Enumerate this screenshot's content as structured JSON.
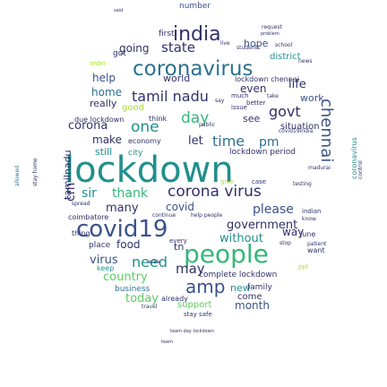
{
  "title": "",
  "palette": {
    "teal": "#21908d",
    "blue": "#3b528b",
    "navy": "#30316a",
    "green": "#5ec962",
    "lime": "#aadc32",
    "purple": "#472d7b",
    "dark": "#440154",
    "sea": "#2c728e",
    "mint": "#35b779",
    "yellow": "#fde725"
  },
  "words": [
    {
      "text": "lockdown",
      "color": "#21908d"
    },
    {
      "text": "covid19",
      "color": "#3b528b"
    },
    {
      "text": "people",
      "color": "#35b779"
    },
    {
      "text": "coronavirus",
      "color": "#2c728e"
    },
    {
      "text": "india",
      "color": "#30316a"
    },
    {
      "text": "chennai",
      "color": "#3b528b"
    },
    {
      "text": "tamil nadu",
      "color": "#30316a"
    },
    {
      "text": "corona virus",
      "color": "#30316a"
    },
    {
      "text": "amp",
      "color": "#3b528b"
    },
    {
      "text": "time",
      "color": "#2c728e"
    },
    {
      "text": "going",
      "color": "#30316a"
    },
    {
      "text": "state",
      "color": "#30316a"
    },
    {
      "text": "govt",
      "color": "#30316a"
    },
    {
      "text": "day",
      "color": "#35b779"
    },
    {
      "text": "one",
      "color": "#21908d"
    },
    {
      "text": "corona",
      "color": "#30316a"
    },
    {
      "text": "help",
      "color": "#3b528b"
    },
    {
      "text": "sir",
      "color": "#21908d"
    },
    {
      "text": "thank",
      "color": "#35b779"
    },
    {
      "text": "please",
      "color": "#3b528b"
    },
    {
      "text": "covid",
      "color": "#3b528b"
    },
    {
      "text": "pm",
      "color": "#2c728e"
    },
    {
      "text": "need",
      "color": "#21908d"
    },
    {
      "text": "may",
      "color": "#30316a"
    },
    {
      "text": "virus",
      "color": "#3b528b"
    },
    {
      "text": "without",
      "color": "#21908d"
    },
    {
      "text": "government",
      "color": "#30316a"
    },
    {
      "text": "many",
      "color": "#30316a"
    },
    {
      "text": "food",
      "color": "#30316a"
    },
    {
      "text": "country",
      "color": "#5ec962"
    },
    {
      "text": "today",
      "color": "#5ec962"
    },
    {
      "text": "month",
      "color": "#3b528b"
    },
    {
      "text": "new",
      "color": "#21908d"
    },
    {
      "text": "come",
      "color": "#30316a"
    },
    {
      "text": "family",
      "color": "#30316a"
    },
    {
      "text": "support",
      "color": "#5ec962"
    },
    {
      "text": "world",
      "color": "#30316a"
    },
    {
      "text": "life",
      "color": "#30316a"
    },
    {
      "text": "work",
      "color": "#3b528b"
    },
    {
      "text": "home",
      "color": "#2c728e"
    },
    {
      "text": "even",
      "color": "#30316a"
    },
    {
      "text": "make",
      "color": "#30316a"
    },
    {
      "text": "still",
      "color": "#21908d"
    },
    {
      "text": "let",
      "color": "#30316a"
    },
    {
      "text": "see",
      "color": "#30316a"
    },
    {
      "text": "got",
      "color": "#30316a"
    },
    {
      "text": "first",
      "color": "#30316a"
    },
    {
      "text": "hope",
      "color": "#3b528b"
    },
    {
      "text": "district",
      "color": "#21908d"
    },
    {
      "text": "number",
      "color": "#3b528b"
    },
    {
      "text": "really",
      "color": "#30316a"
    },
    {
      "text": "good",
      "color": "#aadc32"
    },
    {
      "text": "cm",
      "color": "#30316a"
    },
    {
      "text": "tamilnadu",
      "color": "#30316a"
    },
    {
      "text": "situation",
      "color": "#30316a"
    },
    {
      "text": "due lockdown",
      "color": "#30316a"
    },
    {
      "text": "lockdown period",
      "color": "#30316a"
    },
    {
      "text": "think",
      "color": "#30316a"
    },
    {
      "text": "economy",
      "color": "#30316a"
    },
    {
      "text": "city",
      "color": "#21908d"
    },
    {
      "text": "tn",
      "color": "#30316a"
    },
    {
      "text": "way",
      "color": "#30316a"
    },
    {
      "text": "june",
      "color": "#30316a"
    },
    {
      "text": "want",
      "color": "#30316a"
    },
    {
      "text": "place",
      "color": "#30316a"
    },
    {
      "text": "complete lockdown",
      "color": "#30316a"
    },
    {
      "text": "business",
      "color": "#2c728e"
    },
    {
      "text": "coimbatore",
      "color": "#30316a"
    },
    {
      "text": "keep",
      "color": "#21908d"
    },
    {
      "text": "already",
      "color": "#30316a"
    },
    {
      "text": "team",
      "color": "#30316a"
    },
    {
      "text": "stay safe",
      "color": "#30316a"
    },
    {
      "text": "travel",
      "color": "#30316a"
    },
    {
      "text": "case",
      "color": "#30316a"
    },
    {
      "text": "every",
      "color": "#30316a"
    },
    {
      "text": "indian",
      "color": "#30316a"
    },
    {
      "text": "thing",
      "color": "#30316a"
    },
    {
      "text": "stay home",
      "color": "#30316a"
    },
    {
      "text": "control",
      "color": "#30316a"
    },
    {
      "text": "allowed",
      "color": "#2c728e"
    },
    {
      "text": "continue",
      "color": "#30316a"
    },
    {
      "text": "testing",
      "color": "#30316a"
    },
    {
      "text": "madurai",
      "color": "#30316a"
    },
    {
      "text": "better",
      "color": "#30316a"
    },
    {
      "text": "issue",
      "color": "#30316a"
    },
    {
      "text": "much",
      "color": "#30316a"
    },
    {
      "text": "say",
      "color": "#30316a"
    },
    {
      "text": "live",
      "color": "#30316a"
    },
    {
      "text": "give",
      "color": "#aadc32"
    },
    {
      "text": "school",
      "color": "#30316a"
    },
    {
      "text": "order",
      "color": "#aadc32"
    },
    {
      "text": "students",
      "color": "#30316a"
    },
    {
      "text": "public",
      "color": "#30316a"
    },
    {
      "text": "request",
      "color": "#30316a"
    },
    {
      "text": "problem",
      "color": "#30316a"
    },
    {
      "text": "said",
      "color": "#30316a"
    },
    {
      "text": "news",
      "color": "#30316a"
    },
    {
      "text": "take",
      "color": "#30316a"
    },
    {
      "text": "know",
      "color": "#30316a"
    },
    {
      "text": "spread",
      "color": "#30316a"
    },
    {
      "text": "patient",
      "color": "#30316a"
    },
    {
      "text": "ppl",
      "color": "#aadc32"
    },
    {
      "text": "stop",
      "color": "#30316a"
    },
    {
      "text": "area",
      "color": "#30316a"
    },
    {
      "text": "help people",
      "color": "#30316a"
    },
    {
      "text": "lockdown chennai",
      "color": "#30316a"
    },
    {
      "text": "covid19india",
      "color": "#30316a"
    },
    {
      "text": "coronavirus",
      "color": "#21908d"
    },
    {
      "text": "team day lockdown",
      "color": "#30316a"
    }
  ]
}
